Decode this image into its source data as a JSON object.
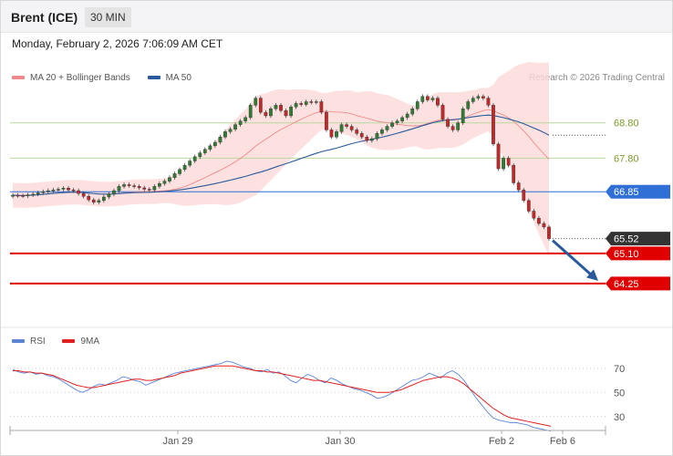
{
  "header": {
    "title": "Brent (ICE)",
    "timeframe": "30 MIN",
    "datetime": "Monday, February 2, 2026 7:06:09 AM CET"
  },
  "legend": {
    "ma20": "MA 20 + Bollinger Bands",
    "ma50": "MA 50",
    "credit": "Research © 2026 Trading Central"
  },
  "rsi_legend": {
    "rsi": "RSI",
    "ma9": "9MA"
  },
  "colors": {
    "up": "#2f7d32",
    "down": "#c62828",
    "band": "#fdd9d9",
    "ma20": "#f08a8a",
    "ma50": "#2a5a9a",
    "resistance": "#b7d99a",
    "pivot": "#2f6fd6",
    "support": "#e00000",
    "last": "#333333",
    "rsi": "#5b84d6",
    "rsi_ma": "#e02020"
  },
  "chart_data": [
    {
      "type": "candlestick",
      "title": "Brent (ICE)",
      "x_labels": [
        "Jan 29",
        "Jan 30",
        "Feb 2",
        "Feb 6"
      ],
      "y_ticks": [],
      "ylim": [
        63.6,
        69.8
      ],
      "close": [
        66.75,
        66.74,
        66.73,
        66.76,
        66.78,
        66.82,
        66.85,
        66.88,
        66.9,
        66.92,
        66.95,
        66.9,
        66.88,
        66.8,
        66.72,
        66.62,
        66.55,
        66.6,
        66.7,
        66.78,
        66.88,
        67.0,
        67.05,
        67.02,
        67.0,
        66.96,
        66.92,
        66.9,
        67.0,
        67.08,
        67.15,
        67.25,
        67.36,
        67.48,
        67.6,
        67.72,
        67.84,
        67.95,
        68.05,
        68.15,
        68.25,
        68.4,
        68.55,
        68.62,
        68.75,
        68.85,
        68.95,
        69.3,
        69.5,
        69.1,
        69.0,
        69.2,
        69.3,
        69.15,
        69.0,
        69.25,
        69.35,
        69.32,
        69.4,
        69.38,
        69.4,
        69.1,
        68.6,
        68.4,
        68.55,
        68.75,
        68.7,
        68.6,
        68.5,
        68.4,
        68.3,
        68.35,
        68.5,
        68.6,
        68.7,
        68.8,
        68.85,
        68.95,
        69.05,
        69.2,
        69.4,
        69.55,
        69.45,
        69.5,
        69.3,
        68.9,
        68.7,
        68.6,
        68.8,
        69.2,
        69.4,
        69.5,
        69.55,
        69.5,
        69.3,
        68.2,
        67.5,
        67.8,
        67.6,
        67.1,
        66.9,
        66.6,
        66.3,
        66.1,
        65.95,
        65.85,
        65.52
      ],
      "levels": [
        {
          "label": "68.80",
          "value": 68.8,
          "kind": "resistance"
        },
        {
          "label": "67.80",
          "value": 67.8,
          "kind": "resistance"
        },
        {
          "label": "66.85",
          "value": 66.85,
          "kind": "pivot"
        },
        {
          "label": "65.52",
          "value": 65.52,
          "kind": "last"
        },
        {
          "label": "65.10",
          "value": 65.1,
          "kind": "support"
        },
        {
          "label": "64.25",
          "value": 64.25,
          "kind": "support"
        }
      ],
      "forecast_arrow": {
        "from": 65.52,
        "to": 64.25
      },
      "series": [
        {
          "name": "MA 20 + Bollinger Bands",
          "type": "band+line"
        },
        {
          "name": "MA 50",
          "type": "line"
        }
      ]
    },
    {
      "type": "line",
      "title": "RSI",
      "y_ticks": [
        "70",
        "50",
        "30"
      ],
      "ylim": [
        20,
        85
      ],
      "series": [
        {
          "name": "RSI",
          "values": [
            69,
            67,
            66,
            67,
            65,
            66,
            64,
            63,
            61,
            58,
            55,
            52,
            50,
            52,
            55,
            57,
            56,
            58,
            60,
            63,
            62,
            60,
            59,
            56,
            58,
            60,
            62,
            64,
            66,
            67,
            68,
            69,
            70,
            71,
            72,
            73,
            74,
            76,
            75,
            73,
            71,
            70,
            68,
            67,
            69,
            66,
            67,
            64,
            60,
            58,
            62,
            65,
            63,
            60,
            58,
            62,
            60,
            57,
            55,
            53,
            52,
            50,
            48,
            45,
            46,
            48,
            51,
            54,
            57,
            60,
            61,
            63,
            66,
            64,
            62,
            66,
            68,
            65,
            60,
            53,
            46,
            40,
            34,
            29,
            27,
            26,
            25,
            25,
            24,
            23,
            21,
            20,
            19,
            18
          ]
        },
        {
          "name": "9MA",
          "values": [
            68,
            68,
            67,
            67,
            66,
            66,
            65,
            64,
            62,
            60,
            58,
            56,
            55,
            54,
            54,
            55,
            56,
            57,
            58,
            59,
            60,
            61,
            61,
            60,
            60,
            61,
            62,
            63,
            64,
            66,
            67,
            68,
            69,
            70,
            71,
            72,
            72,
            72,
            72,
            71,
            70,
            69,
            68,
            68,
            67,
            67,
            66,
            65,
            64,
            63,
            62,
            61,
            60,
            60,
            59,
            58,
            57,
            56,
            55,
            54,
            53,
            52,
            51,
            50,
            50,
            50,
            51,
            52,
            54,
            56,
            58,
            60,
            61,
            62,
            63,
            63,
            62,
            60,
            57,
            53,
            49,
            45,
            41,
            37,
            34,
            31,
            29,
            28,
            27,
            26,
            25,
            24,
            23,
            22
          ]
        }
      ]
    }
  ]
}
